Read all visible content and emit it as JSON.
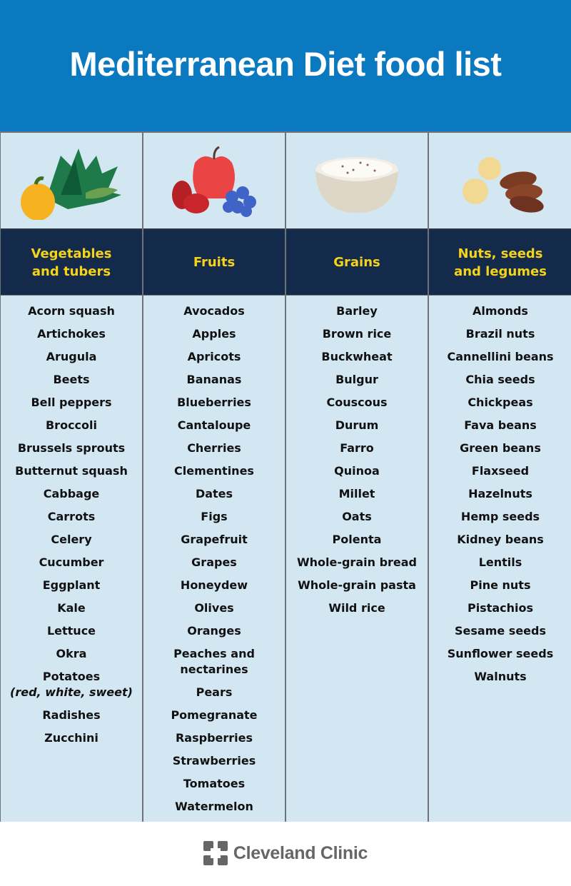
{
  "title": "Mediterranean Diet food list",
  "columns": [
    {
      "heading": "Vegetables\nand tubers",
      "icon": "vegetables-illustration",
      "items": [
        {
          "label": "Acorn squash"
        },
        {
          "label": "Artichokes"
        },
        {
          "label": "Arugula"
        },
        {
          "label": "Beets"
        },
        {
          "label": "Bell peppers"
        },
        {
          "label": "Broccoli"
        },
        {
          "label": "Brussels sprouts"
        },
        {
          "label": "Butternut squash"
        },
        {
          "label": "Cabbage"
        },
        {
          "label": "Carrots"
        },
        {
          "label": "Celery"
        },
        {
          "label": "Cucumber"
        },
        {
          "label": "Eggplant"
        },
        {
          "label": "Kale"
        },
        {
          "label": "Lettuce"
        },
        {
          "label": "Okra"
        },
        {
          "label": "Potatoes",
          "note": "(red, white, sweet)"
        },
        {
          "label": "Radishes"
        },
        {
          "label": "Zucchini"
        }
      ]
    },
    {
      "heading": "Fruits",
      "icon": "fruits-illustration",
      "items": [
        {
          "label": "Avocados"
        },
        {
          "label": "Apples"
        },
        {
          "label": "Apricots"
        },
        {
          "label": "Bananas"
        },
        {
          "label": "Blueberries"
        },
        {
          "label": "Cantaloupe"
        },
        {
          "label": "Cherries"
        },
        {
          "label": "Clementines"
        },
        {
          "label": "Dates"
        },
        {
          "label": "Figs"
        },
        {
          "label": "Grapefruit"
        },
        {
          "label": "Grapes"
        },
        {
          "label": "Honeydew"
        },
        {
          "label": "Olives"
        },
        {
          "label": "Oranges"
        },
        {
          "label": "Peaches and",
          "note": "nectarines"
        },
        {
          "label": "Pears"
        },
        {
          "label": "Pomegranate"
        },
        {
          "label": "Raspberries"
        },
        {
          "label": "Strawberries"
        },
        {
          "label": "Tomatoes"
        },
        {
          "label": "Watermelon"
        }
      ]
    },
    {
      "heading": "Grains",
      "icon": "grains-bowl-illustration",
      "items": [
        {
          "label": "Barley"
        },
        {
          "label": "Brown rice"
        },
        {
          "label": "Buckwheat"
        },
        {
          "label": "Bulgur"
        },
        {
          "label": "Couscous"
        },
        {
          "label": "Durum"
        },
        {
          "label": "Farro"
        },
        {
          "label": "Quinoa"
        },
        {
          "label": "Millet"
        },
        {
          "label": "Oats"
        },
        {
          "label": "Polenta"
        },
        {
          "label": "Whole-grain bread"
        },
        {
          "label": "Whole-grain pasta"
        },
        {
          "label": "Wild rice"
        }
      ]
    },
    {
      "heading": "Nuts, seeds\nand legumes",
      "icon": "nuts-illustration",
      "items": [
        {
          "label": "Almonds"
        },
        {
          "label": "Brazil nuts"
        },
        {
          "label": "Cannellini beans"
        },
        {
          "label": "Chia seeds"
        },
        {
          "label": "Chickpeas"
        },
        {
          "label": "Fava beans"
        },
        {
          "label": "Green beans"
        },
        {
          "label": "Flaxseed"
        },
        {
          "label": "Hazelnuts"
        },
        {
          "label": "Hemp seeds"
        },
        {
          "label": "Kidney beans"
        },
        {
          "label": "Lentils"
        },
        {
          "label": "Pine nuts"
        },
        {
          "label": "Pistachios"
        },
        {
          "label": "Sesame seeds"
        },
        {
          "label": "Sunflower seeds"
        },
        {
          "label": "Walnuts"
        }
      ]
    }
  ],
  "footer": {
    "brand": "Cleveland Clinic"
  },
  "colors": {
    "banner": "#0b79c0",
    "header_bg": "#132a4a",
    "header_text": "#f5d31a",
    "cell_bg": "#d3e7f3"
  }
}
